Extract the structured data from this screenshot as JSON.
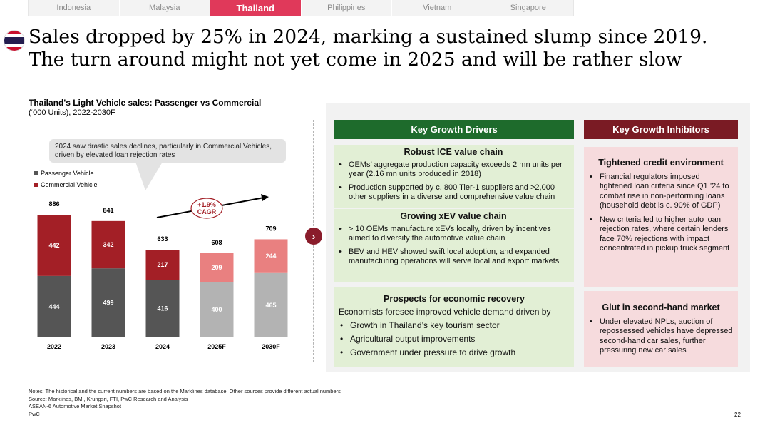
{
  "tabs": [
    "Indonesia",
    "Malaysia",
    "Thailand",
    "Philippines",
    "Vietnam",
    "Singapore"
  ],
  "active_tab": "Thailand",
  "title": {
    "line1": "Sales dropped by 25% in 2024, marking a sustained slump since 2019.",
    "line2": "The turn around might not yet come in 2025 and will be rather slow"
  },
  "chart_header": {
    "title": "Thailand's Light Vehicle sales: Passenger vs Commercial",
    "subtitle": "(‘000 Units), 2022-2030F"
  },
  "callout": "2024 saw drastic sales declines, particularly in Commercial Vehicles, driven by elevated loan rejection rates",
  "cagr": {
    "line1": "+1.9%",
    "line2": "CAGR"
  },
  "chart_data": {
    "type": "bar",
    "stacked": true,
    "title": "Thailand's Light Vehicle sales: Passenger vs Commercial",
    "unit": "'000 Units",
    "categories": [
      "2022",
      "2023",
      "2024",
      "2025F",
      "2030F"
    ],
    "series": [
      {
        "name": "Passenger Vehicle",
        "values": [
          444,
          499,
          416,
          400,
          465
        ]
      },
      {
        "name": "Commercial Vehicle",
        "values": [
          442,
          342,
          217,
          209,
          244
        ]
      }
    ],
    "totals": [
      886,
      841,
      633,
      608,
      709
    ],
    "forecast_categories": [
      "2025F",
      "2030F"
    ],
    "ylim": [
      0,
      950
    ]
  },
  "colors": {
    "passenger": "#555555",
    "commercial": "#a31f26",
    "passenger_forecast": "#b3b3b3",
    "commercial_forecast": "#e98080",
    "accent": "#e0395a",
    "green_header": "#1e6b2c",
    "red_header": "#7a1b24"
  },
  "drivers": {
    "header": "Key Growth Drivers",
    "sections": [
      {
        "title": "Robust ICE value chain",
        "bullets": [
          "OEMs’ aggregate production capacity exceeds 2 mn units per year (2.16 mn units produced in 2018)",
          "Production supported by c. 800 Tier-1 suppliers and >2,000 other suppliers in a diverse and comprehensive value chain"
        ]
      },
      {
        "title": "Growing xEV value chain",
        "bullets": [
          "> 10 OEMs manufacture xEVs locally, driven by incentives aimed to diversify the automotive value chain",
          "BEV and HEV showed swift local adoption, and expanded manufacturing operations will serve local and export markets"
        ]
      },
      {
        "title": "Prospects for economic recovery",
        "intro": "Economists foresee improved vehicle demand driven by",
        "bullets": [
          "Growth in Thailand’s key tourism sector",
          "Agricultural output improvements",
          "Government under pressure to drive growth"
        ]
      }
    ]
  },
  "inhibitors": {
    "header": "Key Growth Inhibitors",
    "sections": [
      {
        "title": "Tightened credit environment",
        "bullets": [
          "Financial regulators imposed tightened loan criteria since Q1 ’24 to combat rise in non-performing loans (household debt is c. 90% of GDP)",
          "New criteria led to higher auto loan rejection rates, where certain lenders face 70% rejections with impact concentrated in pickup truck segment"
        ]
      },
      {
        "title": "Glut in second-hand market",
        "bullets": [
          "Under elevated NPLs, auction of repossessed vehicles have depressed second-hand car sales, further pressuring new car sales"
        ]
      }
    ]
  },
  "footer": {
    "notes": "Notes: The historical and the current numbers are based on the Marklines database. Other sources provide different actual numbers",
    "source": "Source: Marklines, BMI, Krungsri, FTI, PwC Research and Analysis",
    "report": "ASEAN-6 Automotive Market Snapshot",
    "brand": "PwC",
    "page": "22"
  }
}
